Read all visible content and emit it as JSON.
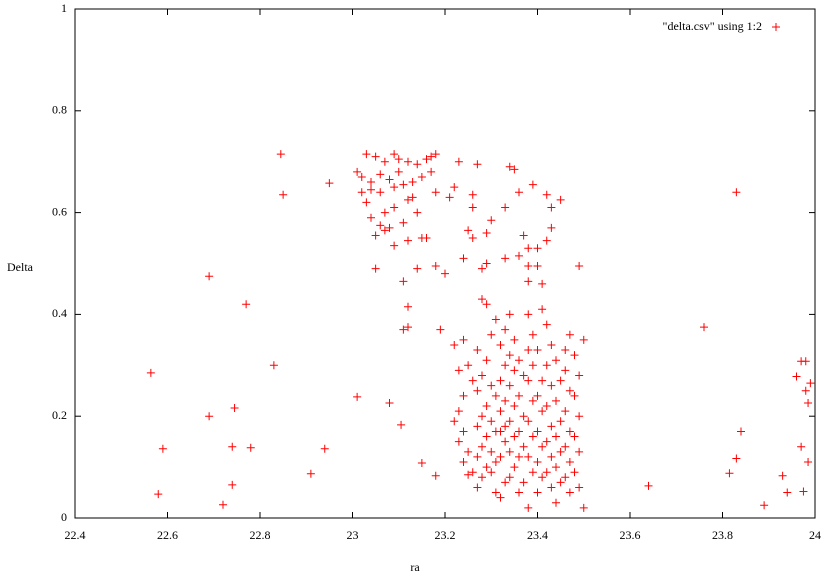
{
  "chart_data": {
    "type": "scatter",
    "x_label": "ra",
    "y_label": "Delta",
    "xlim": [
      22.4,
      24
    ],
    "ylim": [
      0,
      1
    ],
    "xticks": [
      22.4,
      22.6,
      22.8,
      23,
      23.2,
      23.4,
      23.6,
      23.8,
      24
    ],
    "yticks": [
      0,
      0.2,
      0.4,
      0.6,
      0.8,
      1
    ],
    "grid": false,
    "legend_position": "top-right",
    "x": [
      22.564,
      22.58,
      22.59,
      22.69,
      22.69,
      22.72,
      22.74,
      22.74,
      22.745,
      22.77,
      22.78,
      22.83,
      22.845,
      22.85,
      22.91,
      22.94,
      22.95,
      23.01,
      23.08,
      23.105,
      23.15,
      23.18,
      23.64,
      23.76,
      23.83,
      23.84,
      23.83,
      23.815,
      23.89,
      23.93,
      23.94,
      23.96,
      23.97,
      23.98,
      23.98,
      23.985,
      23.99,
      23.97,
      23.985,
      23.975,
      23.03,
      23.05,
      23.07,
      23.09,
      23.1,
      23.12,
      23.14,
      23.16,
      23.17,
      23.18,
      23.01,
      23.02,
      23.04,
      23.06,
      23.08,
      23.1,
      23.13,
      23.15,
      23.17,
      23.02,
      23.04,
      23.06,
      23.09,
      23.11,
      23.13,
      23.18,
      23.03,
      23.07,
      23.09,
      23.12,
      23.14,
      23.04,
      23.06,
      23.08,
      23.11,
      23.16,
      23.05,
      23.07,
      23.09,
      23.12,
      23.15,
      23.18,
      23.05,
      23.14,
      23.11,
      23.2,
      23.12,
      23.11,
      23.12,
      23.19,
      23.22,
      23.23,
      23.27,
      23.26,
      23.26,
      23.21,
      23.25,
      23.26,
      23.29,
      23.3,
      23.33,
      23.34,
      23.35,
      23.36,
      23.39,
      23.42,
      23.43,
      23.45,
      23.42,
      23.43,
      23.38,
      23.4,
      23.37,
      23.36,
      23.38,
      23.38,
      23.41,
      23.4,
      23.49,
      23.28,
      23.29,
      23.33,
      23.24,
      23.28,
      23.29,
      23.24,
      23.22,
      23.25,
      23.23,
      23.26,
      23.24,
      23.23,
      23.22,
      23.24,
      23.23,
      23.25,
      23.24,
      23.26,
      23.25,
      23.27,
      23.28,
      23.29,
      23.27,
      23.28,
      23.29,
      23.27,
      23.28,
      23.29,
      23.27,
      23.28,
      23.29,
      23.27,
      23.3,
      23.31,
      23.3,
      23.31,
      23.3,
      23.31,
      23.3,
      23.31,
      23.3,
      23.31,
      23.32,
      23.33,
      23.32,
      23.33,
      23.32,
      23.33,
      23.32,
      23.33,
      23.32,
      23.33,
      23.32,
      23.33,
      23.34,
      23.35,
      23.34,
      23.35,
      23.34,
      23.35,
      23.34,
      23.35,
      23.34,
      23.35,
      23.34,
      23.36,
      23.37,
      23.36,
      23.37,
      23.36,
      23.37,
      23.36,
      23.37,
      23.36,
      23.38,
      23.39,
      23.38,
      23.39,
      23.38,
      23.39,
      23.38,
      23.39,
      23.38,
      23.39,
      23.38,
      23.4,
      23.41,
      23.4,
      23.41,
      23.4,
      23.41,
      23.4,
      23.41,
      23.4,
      23.41,
      23.42,
      23.43,
      23.42,
      23.43,
      23.42,
      23.43,
      23.42,
      23.43,
      23.42,
      23.43,
      23.44,
      23.45,
      23.44,
      23.45,
      23.44,
      23.45,
      23.44,
      23.45,
      23.44,
      23.46,
      23.47,
      23.46,
      23.47,
      23.46,
      23.47,
      23.46,
      23.47,
      23.46,
      23.47,
      23.48,
      23.49,
      23.48,
      23.49,
      23.48,
      23.49,
      23.48,
      23.5,
      23.49,
      23.5
    ],
    "series": [
      {
        "name": "\"delta.csv\" using 1:2",
        "color": "#ff0000",
        "values": [
          0.285,
          0.047,
          0.136,
          0.475,
          0.2,
          0.026,
          0.14,
          0.065,
          0.216,
          0.42,
          0.138,
          0.3,
          0.715,
          0.635,
          0.087,
          0.136,
          0.658,
          0.238,
          0.226,
          0.183,
          0.108,
          0.083,
          0.063,
          0.375,
          0.64,
          0.17,
          0.117,
          0.088,
          0.025,
          0.083,
          0.05,
          0.278,
          0.308,
          0.308,
          0.25,
          0.226,
          0.265,
          0.14,
          0.11,
          0.052,
          0.715,
          0.71,
          0.7,
          0.715,
          0.705,
          0.7,
          0.695,
          0.705,
          0.71,
          0.715,
          0.68,
          0.67,
          0.66,
          0.675,
          0.665,
          0.68,
          0.66,
          0.67,
          0.68,
          0.64,
          0.645,
          0.64,
          0.65,
          0.655,
          0.63,
          0.64,
          0.62,
          0.6,
          0.61,
          0.625,
          0.6,
          0.59,
          0.575,
          0.57,
          0.58,
          0.55,
          0.555,
          0.565,
          0.535,
          0.545,
          0.55,
          0.495,
          0.49,
          0.49,
          0.465,
          0.48,
          0.415,
          0.37,
          0.375,
          0.37,
          0.65,
          0.7,
          0.695,
          0.635,
          0.61,
          0.63,
          0.565,
          0.55,
          0.56,
          0.585,
          0.61,
          0.69,
          0.685,
          0.64,
          0.655,
          0.635,
          0.61,
          0.625,
          0.545,
          0.57,
          0.53,
          0.53,
          0.555,
          0.515,
          0.495,
          0.465,
          0.46,
          0.495,
          0.495,
          0.49,
          0.5,
          0.51,
          0.51,
          0.43,
          0.42,
          0.35,
          0.34,
          0.3,
          0.29,
          0.27,
          0.24,
          0.21,
          0.19,
          0.17,
          0.15,
          0.13,
          0.11,
          0.09,
          0.085,
          0.06,
          0.08,
          0.1,
          0.12,
          0.14,
          0.16,
          0.18,
          0.2,
          0.22,
          0.25,
          0.28,
          0.31,
          0.33,
          0.36,
          0.39,
          0.26,
          0.24,
          0.19,
          0.17,
          0.13,
          0.11,
          0.09,
          0.05,
          0.04,
          0.07,
          0.12,
          0.15,
          0.17,
          0.18,
          0.21,
          0.23,
          0.27,
          0.3,
          0.34,
          0.37,
          0.4,
          0.35,
          0.32,
          0.29,
          0.26,
          0.22,
          0.19,
          0.16,
          0.13,
          0.1,
          0.08,
          0.05,
          0.07,
          0.12,
          0.14,
          0.17,
          0.2,
          0.24,
          0.28,
          0.31,
          0.33,
          0.36,
          0.4,
          0.3,
          0.27,
          0.23,
          0.19,
          0.16,
          0.12,
          0.09,
          0.02,
          0.05,
          0.08,
          0.11,
          0.14,
          0.17,
          0.21,
          0.24,
          0.27,
          0.33,
          0.41,
          0.38,
          0.34,
          0.3,
          0.26,
          0.22,
          0.18,
          0.15,
          0.12,
          0.09,
          0.06,
          0.03,
          0.07,
          0.1,
          0.13,
          0.16,
          0.19,
          0.23,
          0.27,
          0.31,
          0.33,
          0.36,
          0.29,
          0.25,
          0.21,
          0.17,
          0.14,
          0.11,
          0.08,
          0.05,
          0.09,
          0.13,
          0.16,
          0.2,
          0.24,
          0.28,
          0.32,
          0.35,
          0.06,
          0.02
        ]
      }
    ]
  }
}
